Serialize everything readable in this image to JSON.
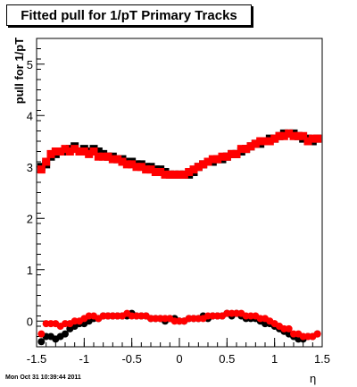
{
  "title": "Fitted pull for 1/pT  Primary Tracks",
  "footer": "Mon Oct 31 10:39:44 2011",
  "chart_data": {
    "type": "scatter",
    "title": "Fitted pull for 1/pT  Primary Tracks",
    "xlabel": "η",
    "ylabel": "pull for 1/pT",
    "xlim": [
      -1.5,
      1.5
    ],
    "ylim": [
      -0.5,
      5.5
    ],
    "xticks": [
      -1.5,
      -1,
      -0.5,
      0,
      0.5,
      1,
      1.5
    ],
    "xtick_labels": [
      "-1.5",
      "-1",
      "-0.5",
      "0",
      "0.5",
      "1",
      "1.5"
    ],
    "yticks": [
      0,
      1,
      2,
      3,
      4,
      5
    ],
    "ytick_labels": [
      "0",
      "1",
      "2",
      "3",
      "4",
      "5"
    ],
    "grid": false,
    "series": [
      {
        "marker": "square",
        "color": "#000000",
        "x": [
          -1.45,
          -1.4,
          -1.35,
          -1.3,
          -1.25,
          -1.2,
          -1.15,
          -1.1,
          -1.05,
          -1.0,
          -0.95,
          -0.9,
          -0.85,
          -0.8,
          -0.75,
          -0.7,
          -0.65,
          -0.6,
          -0.55,
          -0.5,
          -0.45,
          -0.4,
          -0.35,
          -0.3,
          -0.25,
          -0.2,
          -0.15,
          -0.1,
          -0.05,
          0.0,
          0.05,
          0.1,
          0.15,
          0.2,
          0.25,
          0.3,
          0.35,
          0.4,
          0.45,
          0.5,
          0.55,
          0.6,
          0.65,
          0.7,
          0.75,
          0.8,
          0.85,
          0.9,
          0.95,
          1.0,
          1.05,
          1.1,
          1.15,
          1.2,
          1.25,
          1.3,
          1.35,
          1.4,
          1.45
        ],
        "y": [
          3.0,
          3.05,
          3.2,
          3.25,
          3.3,
          3.3,
          3.35,
          3.4,
          3.3,
          3.35,
          3.3,
          3.35,
          3.3,
          3.25,
          3.2,
          3.2,
          3.15,
          3.15,
          3.1,
          3.1,
          3.05,
          3.05,
          3.0,
          3.0,
          2.95,
          2.95,
          2.9,
          2.85,
          2.85,
          2.85,
          2.85,
          2.85,
          2.9,
          3.0,
          3.05,
          3.1,
          3.1,
          3.15,
          3.15,
          3.2,
          3.25,
          3.25,
          3.3,
          3.35,
          3.4,
          3.45,
          3.45,
          3.5,
          3.55,
          3.55,
          3.6,
          3.65,
          3.65,
          3.65,
          3.6,
          3.55,
          3.55,
          3.5,
          3.55
        ]
      },
      {
        "marker": "square",
        "color": "#ff0000",
        "x": [
          -1.45,
          -1.4,
          -1.35,
          -1.3,
          -1.25,
          -1.2,
          -1.15,
          -1.1,
          -1.05,
          -1.0,
          -0.95,
          -0.9,
          -0.85,
          -0.8,
          -0.75,
          -0.7,
          -0.65,
          -0.6,
          -0.55,
          -0.5,
          -0.45,
          -0.4,
          -0.35,
          -0.3,
          -0.25,
          -0.2,
          -0.15,
          -0.1,
          -0.05,
          0.0,
          0.05,
          0.1,
          0.15,
          0.2,
          0.25,
          0.3,
          0.35,
          0.4,
          0.45,
          0.5,
          0.55,
          0.6,
          0.65,
          0.7,
          0.75,
          0.8,
          0.85,
          0.9,
          0.95,
          1.0,
          1.05,
          1.1,
          1.15,
          1.2,
          1.25,
          1.3,
          1.35,
          1.4,
          1.45
        ],
        "y": [
          2.95,
          3.1,
          3.25,
          3.3,
          3.3,
          3.35,
          3.3,
          3.35,
          3.3,
          3.3,
          3.25,
          3.3,
          3.2,
          3.2,
          3.2,
          3.15,
          3.15,
          3.1,
          3.05,
          3.05,
          3.0,
          3.0,
          2.95,
          2.95,
          2.9,
          2.9,
          2.85,
          2.85,
          2.85,
          2.85,
          2.85,
          2.9,
          2.95,
          3.0,
          3.05,
          3.1,
          3.15,
          3.15,
          3.2,
          3.2,
          3.25,
          3.25,
          3.35,
          3.35,
          3.4,
          3.45,
          3.5,
          3.5,
          3.5,
          3.55,
          3.6,
          3.6,
          3.65,
          3.6,
          3.6,
          3.6,
          3.5,
          3.55,
          3.55
        ]
      },
      {
        "marker": "circle",
        "color": "#000000",
        "x": [
          -1.45,
          -1.4,
          -1.35,
          -1.3,
          -1.25,
          -1.2,
          -1.15,
          -1.1,
          -1.05,
          -1.0,
          -0.95,
          -0.9,
          -0.85,
          -0.8,
          -0.75,
          -0.7,
          -0.65,
          -0.6,
          -0.55,
          -0.5,
          -0.45,
          -0.4,
          -0.35,
          -0.3,
          -0.25,
          -0.2,
          -0.15,
          -0.1,
          -0.05,
          0.0,
          0.05,
          0.1,
          0.15,
          0.2,
          0.25,
          0.3,
          0.35,
          0.4,
          0.45,
          0.5,
          0.55,
          0.6,
          0.65,
          0.7,
          0.75,
          0.8,
          0.85,
          0.9,
          0.95,
          1.0,
          1.05,
          1.1,
          1.15,
          1.2,
          1.25,
          1.3,
          1.35,
          1.4,
          1.45
        ],
        "y": [
          -0.4,
          -0.3,
          -0.3,
          -0.35,
          -0.3,
          -0.25,
          -0.15,
          -0.1,
          -0.05,
          -0.05,
          0.0,
          0.05,
          0.05,
          0.1,
          0.1,
          0.1,
          0.1,
          0.1,
          0.1,
          0.15,
          0.1,
          0.1,
          0.1,
          0.05,
          0.05,
          0.05,
          0.0,
          0.05,
          0.05,
          0.0,
          0.0,
          0.05,
          0.05,
          0.05,
          0.1,
          0.05,
          0.1,
          0.1,
          0.1,
          0.15,
          0.1,
          0.15,
          0.1,
          0.05,
          0.05,
          0.05,
          0.0,
          -0.05,
          -0.05,
          -0.1,
          -0.15,
          -0.2,
          -0.25,
          -0.3,
          -0.35,
          -0.35,
          -0.3,
          -0.3,
          -0.25
        ]
      },
      {
        "marker": "circle",
        "color": "#ff0000",
        "x": [
          -1.45,
          -1.4,
          -1.35,
          -1.3,
          -1.25,
          -1.2,
          -1.15,
          -1.1,
          -1.05,
          -1.0,
          -0.95,
          -0.9,
          -0.85,
          -0.8,
          -0.75,
          -0.7,
          -0.65,
          -0.6,
          -0.55,
          -0.5,
          -0.45,
          -0.4,
          -0.35,
          -0.3,
          -0.25,
          -0.2,
          -0.15,
          -0.1,
          -0.05,
          0.0,
          0.05,
          0.1,
          0.15,
          0.2,
          0.25,
          0.3,
          0.35,
          0.4,
          0.45,
          0.5,
          0.55,
          0.6,
          0.65,
          0.7,
          0.75,
          0.8,
          0.85,
          0.9,
          0.95,
          1.0,
          1.05,
          1.1,
          1.15,
          1.2,
          1.25,
          1.3,
          1.35,
          1.4,
          1.45
        ],
        "y": [
          -0.25,
          -0.05,
          -0.05,
          -0.05,
          -0.1,
          -0.05,
          -0.05,
          0.0,
          0.0,
          0.05,
          0.1,
          0.1,
          0.05,
          0.1,
          0.1,
          0.1,
          0.1,
          0.1,
          0.15,
          0.1,
          0.1,
          0.1,
          0.1,
          0.05,
          0.05,
          0.05,
          0.05,
          0.05,
          0.0,
          0.0,
          0.0,
          0.05,
          0.05,
          0.05,
          0.05,
          0.1,
          0.1,
          0.1,
          0.1,
          0.15,
          0.15,
          0.15,
          0.15,
          0.1,
          0.1,
          0.1,
          0.05,
          0.05,
          0.0,
          -0.05,
          -0.1,
          -0.15,
          -0.15,
          -0.25,
          -0.25,
          -0.3,
          -0.3,
          -0.3,
          -0.25
        ]
      }
    ]
  }
}
